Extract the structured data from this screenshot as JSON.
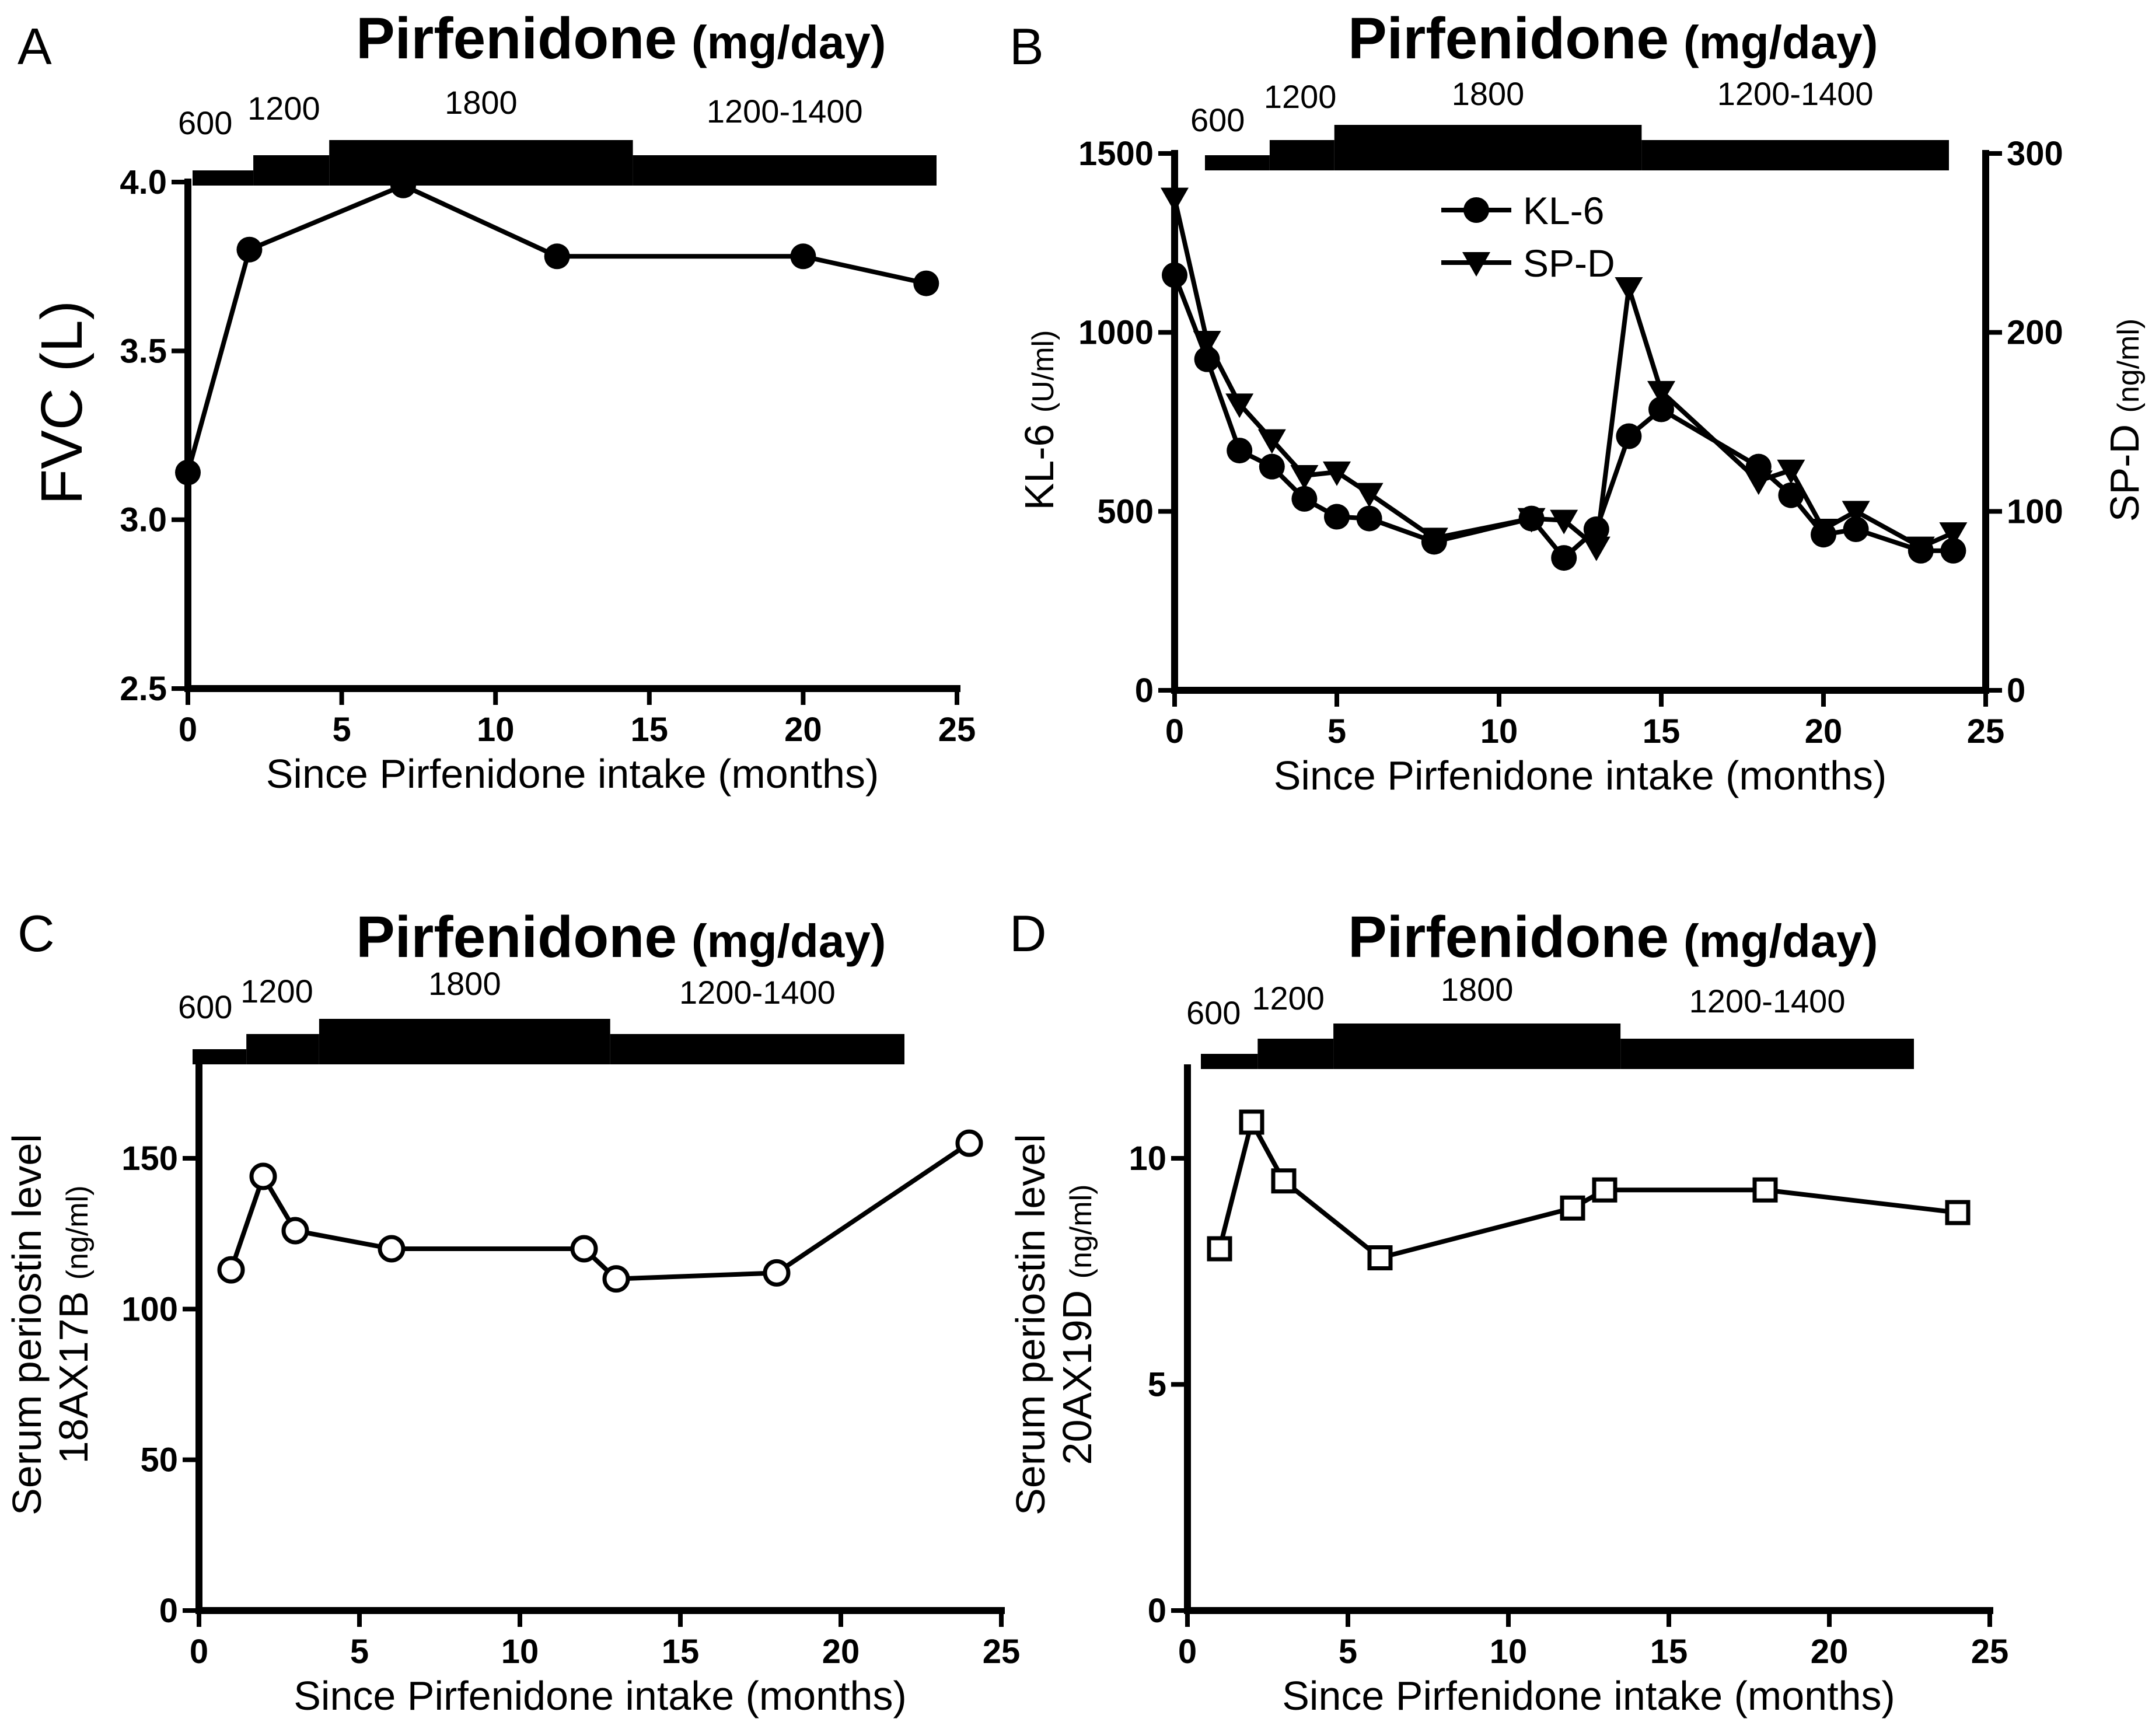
{
  "chart_data": [
    {
      "panel": "A",
      "type": "line",
      "title": "Pirfenidone",
      "title_unit": "(mg/day)",
      "dose_bar": [
        {
          "label": "600",
          "start": 0,
          "end": 2
        },
        {
          "label": "1200",
          "start": 2,
          "end": 4.5
        },
        {
          "label": "1800",
          "start": 4.5,
          "end": 14.5
        },
        {
          "label": "1200-1400",
          "start": 14.5,
          "end": 24.5
        }
      ],
      "xlabel": "Since Pirfenidone intake (months)",
      "ylabel": "FVC (L)",
      "xlim": [
        0,
        25
      ],
      "ylim": [
        2.5,
        4.0
      ],
      "xticks": [
        "0",
        "5",
        "10",
        "15",
        "20",
        "25"
      ],
      "yticks": [
        "2.5",
        "3.0",
        "3.5",
        "4.0"
      ],
      "series": [
        {
          "name": "FVC",
          "marker": "circle-filled",
          "x": [
            0,
            2,
            7,
            12,
            20,
            24
          ],
          "y": [
            3.14,
            3.8,
            3.99,
            3.78,
            3.78,
            3.7
          ]
        }
      ]
    },
    {
      "panel": "B",
      "type": "line",
      "title": "Pirfenidone",
      "title_unit": "(mg/day)",
      "dose_bar": [
        {
          "label": "600",
          "start": 1,
          "end": 3
        },
        {
          "label": "1200",
          "start": 3,
          "end": 5
        },
        {
          "label": "1800",
          "start": 5,
          "end": 14.5
        },
        {
          "label": "1200-1400",
          "start": 14.5,
          "end": 24
        }
      ],
      "xlabel": "Since Pirfenidone intake (months)",
      "ylabel": "KL-6",
      "ylabel_unit": "(U/ml)",
      "y2label": "SP-D",
      "y2label_unit": "(ng/ml)",
      "xlim": [
        0,
        25
      ],
      "ylim": [
        0,
        1500
      ],
      "y2lim": [
        0,
        300
      ],
      "xticks": [
        "0",
        "5",
        "10",
        "15",
        "20",
        "25"
      ],
      "yticks": [
        "0",
        "500",
        "1000",
        "1500"
      ],
      "y2ticks": [
        "0",
        "100",
        "200",
        "300"
      ],
      "legend": [
        "KL-6",
        "SP-D"
      ],
      "series": [
        {
          "name": "KL-6",
          "axis": "left",
          "marker": "circle-filled",
          "x": [
            0,
            1,
            2,
            3,
            4,
            5,
            6,
            8,
            11,
            12,
            13,
            14,
            15,
            18,
            19,
            20,
            21,
            23,
            24
          ],
          "y": [
            1160,
            925,
            670,
            625,
            535,
            485,
            480,
            415,
            480,
            370,
            450,
            710,
            785,
            625,
            545,
            435,
            450,
            390,
            390
          ]
        },
        {
          "name": "SP-D",
          "axis": "right",
          "marker": "triangle-down-filled",
          "x": [
            0,
            1,
            2,
            3,
            4,
            5,
            6,
            8,
            11,
            12,
            13,
            14,
            15,
            18,
            19,
            20,
            21,
            23,
            24
          ],
          "y": [
            275,
            195,
            160,
            140,
            120,
            122,
            110,
            85,
            96,
            95,
            80,
            225,
            167,
            117,
            123,
            90,
            100,
            80,
            88
          ]
        }
      ]
    },
    {
      "panel": "C",
      "type": "line",
      "title": "Pirfenidone",
      "title_unit": "(mg/day)",
      "dose_bar": [
        {
          "label": "600",
          "start": 0,
          "end": 1.7
        },
        {
          "label": "1200",
          "start": 1.7,
          "end": 4
        },
        {
          "label": "1800",
          "start": 4,
          "end": 13.2
        },
        {
          "label": "1200-1400",
          "start": 13.2,
          "end": 22.5
        }
      ],
      "xlabel": "Since Pirfenidone intake (months)",
      "ylabel": "Serum periostin level",
      "ylabel_line2": "18AX17B",
      "ylabel_unit": "(ng/ml)",
      "xlim": [
        0,
        25
      ],
      "ylim": [
        0,
        180
      ],
      "xticks": [
        "0",
        "5",
        "10",
        "15",
        "20",
        "25"
      ],
      "yticks": [
        "0",
        "50",
        "100",
        "150"
      ],
      "series": [
        {
          "name": "18AX17B",
          "marker": "circle-open",
          "x": [
            1,
            2,
            3,
            6,
            12,
            13,
            18,
            24
          ],
          "y": [
            113,
            144,
            126,
            120,
            120,
            110,
            112,
            155
          ]
        }
      ]
    },
    {
      "panel": "D",
      "type": "line",
      "title": "Pirfenidone",
      "title_unit": "(mg/day)",
      "dose_bar": [
        {
          "label": "600",
          "start": 0.5,
          "end": 2.3
        },
        {
          "label": "1200",
          "start": 2.3,
          "end": 4.7
        },
        {
          "label": "1800",
          "start": 4.7,
          "end": 13.8
        },
        {
          "label": "1200-1400",
          "start": 13.8,
          "end": 23.1
        }
      ],
      "xlabel": "Since Pirfenidone intake (months)",
      "ylabel": "Serum periostin level",
      "ylabel_line2": "20AX19D",
      "ylabel_unit": "(ng/ml)",
      "xlim": [
        0,
        25
      ],
      "ylim": [
        0,
        12
      ],
      "xticks": [
        "0",
        "5",
        "10",
        "15",
        "20",
        "25"
      ],
      "yticks": [
        "0",
        "5",
        "10"
      ],
      "series": [
        {
          "name": "20AX19D",
          "marker": "square-open",
          "x": [
            1,
            2,
            3,
            6,
            12,
            13,
            18,
            24
          ],
          "y": [
            8.0,
            10.8,
            9.5,
            7.8,
            8.9,
            9.3,
            9.3,
            8.8
          ]
        }
      ]
    }
  ]
}
